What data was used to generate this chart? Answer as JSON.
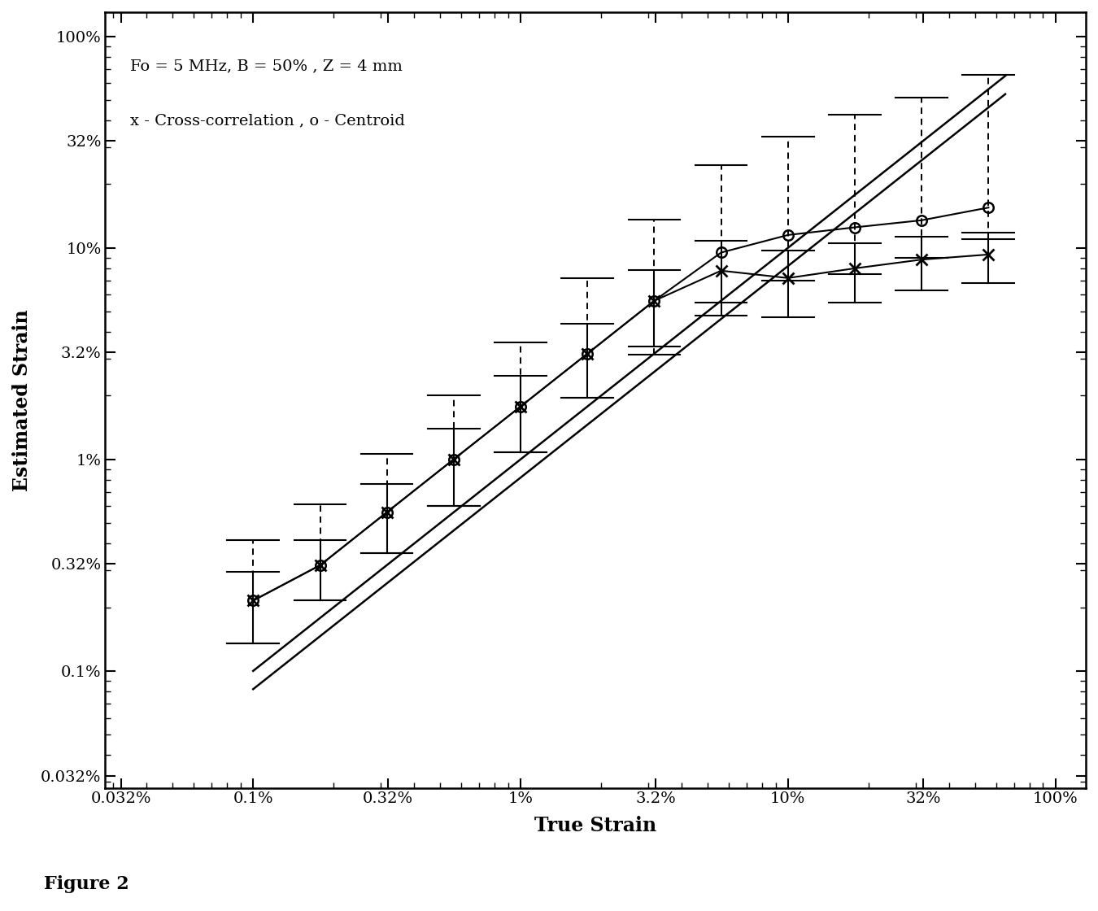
{
  "title": "",
  "xlabel": "True Strain",
  "ylabel": "Estimated Strain",
  "figure_caption": "Figure 2",
  "annotation_line1": "Fo = 5 MHz, B = 50% , Z = 4 mm",
  "annotation_line2": "x - Cross-correlation , o - Centroid",
  "background_color": "#ffffff",
  "text_color": "#000000",
  "x_ticks_pct": [
    0.00032,
    0.001,
    0.0032,
    0.01,
    0.032,
    0.1,
    0.32,
    1.0
  ],
  "x_tick_labels": [
    "0.032%",
    "0.1%",
    "0.32%",
    "1%",
    "3.2%",
    "10%",
    "32%",
    "100%"
  ],
  "y_ticks_pct": [
    0.00032,
    0.001,
    0.0032,
    0.01,
    0.032,
    0.1,
    0.32,
    1.0
  ],
  "y_tick_labels": [
    "0.032%",
    "0.1%",
    "0.32%",
    "1%",
    "3.2%",
    "10%",
    "32%",
    "100%"
  ],
  "xlim": [
    0.00028,
    1.3
  ],
  "ylim": [
    0.00028,
    1.3
  ],
  "true_strain_x": [
    0.001,
    0.00178,
    0.00316,
    0.00562,
    0.01,
    0.01778,
    0.03162,
    0.05623,
    0.1,
    0.17783,
    0.31623,
    0.56234
  ],
  "cross_corr_y": [
    0.00215,
    0.00316,
    0.00562,
    0.01,
    0.01778,
    0.0316,
    0.0562,
    0.078,
    0.072,
    0.08,
    0.088,
    0.093
  ],
  "cross_corr_yerr_lo": [
    0.0008,
    0.001,
    0.002,
    0.004,
    0.007,
    0.012,
    0.022,
    0.03,
    0.025,
    0.025,
    0.025,
    0.025
  ],
  "cross_corr_yerr_hi": [
    0.0008,
    0.001,
    0.002,
    0.004,
    0.007,
    0.012,
    0.022,
    0.03,
    0.025,
    0.025,
    0.025,
    0.025
  ],
  "centroid_y": [
    0.00215,
    0.00316,
    0.00562,
    0.01,
    0.01778,
    0.0316,
    0.0562,
    0.095,
    0.115,
    0.125,
    0.135,
    0.155
  ],
  "centroid_yerr_lo": [
    0.0008,
    0.001,
    0.002,
    0.004,
    0.007,
    0.012,
    0.025,
    0.04,
    0.045,
    0.05,
    0.045,
    0.045
  ],
  "centroid_yerr_hi": [
    0.002,
    0.003,
    0.005,
    0.01,
    0.018,
    0.04,
    0.08,
    0.15,
    0.22,
    0.3,
    0.38,
    0.5
  ],
  "ideal_line_x": [
    0.001,
    0.65
  ],
  "ideal_line_y": [
    0.001,
    0.65
  ]
}
